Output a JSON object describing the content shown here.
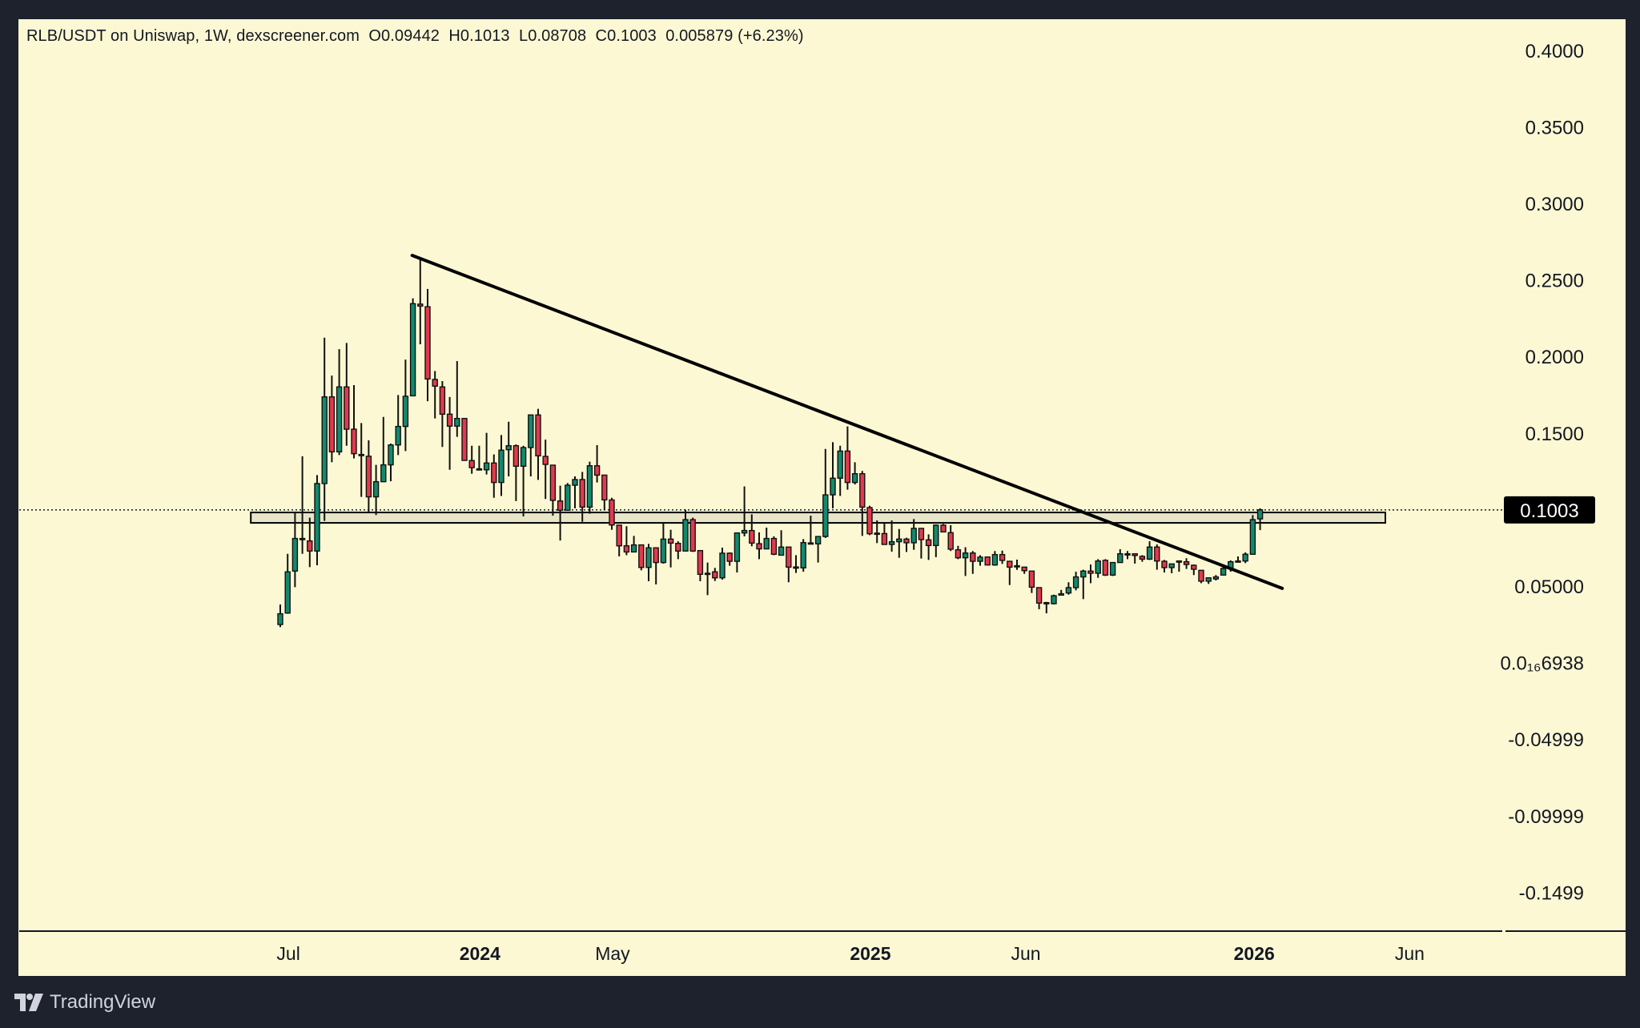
{
  "header": {
    "symbol_line": "RLB/USDT on Uniswap, 1W, dexscreener.com",
    "open": "O0.09442",
    "high": "H0.1013",
    "low": "L0.08708",
    "close": "C0.1003",
    "change": "0.005879 (+6.23%)"
  },
  "branding": {
    "logo_text": "TradingView"
  },
  "colors": {
    "background": "#fcf8d3",
    "frame": "#1e222d",
    "up": "#12896f",
    "down": "#e2394f",
    "zone": "#e9e5c9",
    "line": "#000000"
  },
  "chart_data": {
    "type": "candlestick",
    "title": "RLB/USDT on Uniswap, 1W, dexscreener.com",
    "interval": "1W",
    "ylim": [
      -0.17,
      0.42
    ],
    "y_ticks": [
      {
        "value": 0.4,
        "label": "0.4000"
      },
      {
        "value": 0.35,
        "label": "0.3500"
      },
      {
        "value": 0.3,
        "label": "0.3000"
      },
      {
        "value": 0.25,
        "label": "0.2500"
      },
      {
        "value": 0.2,
        "label": "0.2000"
      },
      {
        "value": 0.15,
        "label": "0.1500"
      },
      {
        "value": 0.05,
        "label": "0.05000"
      },
      {
        "value": 0.0,
        "label": "0.0₁₆6938"
      },
      {
        "value": -0.05,
        "label": "-0.04999"
      },
      {
        "value": -0.1,
        "label": "-0.09999"
      },
      {
        "value": -0.15,
        "label": "-0.1499"
      }
    ],
    "x_ticks": [
      {
        "week_index": 1.1,
        "label": "Jul",
        "bold": false
      },
      {
        "week_index": 27.1,
        "label": "2024",
        "bold": true
      },
      {
        "week_index": 45.1,
        "label": "May",
        "bold": false
      },
      {
        "week_index": 80.1,
        "label": "2025",
        "bold": true
      },
      {
        "week_index": 101.2,
        "label": "Jun",
        "bold": false
      },
      {
        "week_index": 132.2,
        "label": "2026",
        "bold": true
      },
      {
        "week_index": 153.3,
        "label": "Jun",
        "bold": false
      }
    ],
    "last_price": {
      "value": 0.1003,
      "label": "0.1003"
    },
    "trendline": {
      "start": {
        "week_index": 17.9,
        "price": 0.2665
      },
      "end": {
        "week_index": 136,
        "price": 0.049
      }
    },
    "support_zone": {
      "start_index": -4,
      "end_index": 150,
      "low": 0.0918,
      "high": 0.0986
    },
    "ohlc_fields": [
      "open",
      "high",
      "low",
      "close"
    ],
    "candles": [
      [
        0.0254,
        0.0385,
        0.0237,
        0.0324
      ],
      [
        0.0329,
        0.0716,
        0.0324,
        0.0598
      ],
      [
        0.0603,
        0.0986,
        0.0498,
        0.0816
      ],
      [
        0.0816,
        0.1353,
        0.0716,
        0.0814
      ],
      [
        0.08,
        0.0952,
        0.0629,
        0.0734
      ],
      [
        0.0734,
        0.123,
        0.0641,
        0.1175
      ],
      [
        0.1175,
        0.2128,
        0.0931,
        0.1741
      ],
      [
        0.1741,
        0.188,
        0.1314,
        0.1382
      ],
      [
        0.1382,
        0.2053,
        0.1361,
        0.1806
      ],
      [
        0.1806,
        0.2093,
        0.1422,
        0.153
      ],
      [
        0.153,
        0.1818,
        0.1339,
        0.137
      ],
      [
        0.1365,
        0.157,
        0.1088,
        0.136
      ],
      [
        0.1353,
        0.1457,
        0.0986,
        0.1088
      ],
      [
        0.1088,
        0.1297,
        0.0969,
        0.1187
      ],
      [
        0.1187,
        0.161,
        0.1187,
        0.1297
      ],
      [
        0.1297,
        0.1436,
        0.119,
        0.1427
      ],
      [
        0.1427,
        0.1753,
        0.1361,
        0.1548
      ],
      [
        0.1548,
        0.1985,
        0.1387,
        0.1745
      ],
      [
        0.1748,
        0.2385,
        0.1748,
        0.235
      ],
      [
        0.2347,
        0.2643,
        0.2085,
        0.2334
      ],
      [
        0.233,
        0.2446,
        0.1713,
        0.1858
      ],
      [
        0.1855,
        0.191,
        0.16,
        0.1811
      ],
      [
        0.1806,
        0.1844,
        0.1414,
        0.1628
      ],
      [
        0.1628,
        0.174,
        0.1265,
        0.155
      ],
      [
        0.155,
        0.1975,
        0.148,
        0.16
      ],
      [
        0.16,
        0.16,
        0.1326,
        0.1326
      ],
      [
        0.1325,
        0.1422,
        0.1239,
        0.1279
      ],
      [
        0.1271,
        0.1422,
        0.1265,
        0.127
      ],
      [
        0.1265,
        0.1506,
        0.1234,
        0.1309
      ],
      [
        0.1309,
        0.1365,
        0.1082,
        0.1182
      ],
      [
        0.1182,
        0.1492,
        0.1094,
        0.1393
      ],
      [
        0.1396,
        0.1579,
        0.1222,
        0.1422
      ],
      [
        0.1422,
        0.143,
        0.106,
        0.1288
      ],
      [
        0.1288,
        0.1422,
        0.096,
        0.141
      ],
      [
        0.141,
        0.1623,
        0.1222,
        0.1623
      ],
      [
        0.1623,
        0.1663,
        0.1199,
        0.1356
      ],
      [
        0.1352,
        0.1462,
        0.1074,
        0.13
      ],
      [
        0.1295,
        0.1295,
        0.0965,
        0.1065
      ],
      [
        0.1061,
        0.1161,
        0.0803,
        0.1
      ],
      [
        0.1,
        0.1178,
        0.1,
        0.1164
      ],
      [
        0.1164,
        0.1222,
        0.1013,
        0.1201
      ],
      [
        0.1201,
        0.1251,
        0.0925,
        0.1021
      ],
      [
        0.1021,
        0.1318,
        0.0978,
        0.1291
      ],
      [
        0.1291,
        0.1426,
        0.1182,
        0.123
      ],
      [
        0.123,
        0.123,
        0.1,
        0.1068
      ],
      [
        0.1068,
        0.1082,
        0.0873,
        0.0904
      ],
      [
        0.0903,
        0.0903,
        0.0699,
        0.0768
      ],
      [
        0.0768,
        0.0896,
        0.0707,
        0.0728
      ],
      [
        0.0728,
        0.0833,
        0.0728,
        0.0774
      ],
      [
        0.0774,
        0.0774,
        0.0608,
        0.0627
      ],
      [
        0.0627,
        0.0781,
        0.0537,
        0.0755
      ],
      [
        0.0755,
        0.0755,
        0.0516,
        0.0659
      ],
      [
        0.0659,
        0.0917,
        0.0652,
        0.0812
      ],
      [
        0.0812,
        0.0873,
        0.0627,
        0.0786
      ],
      [
        0.0784,
        0.0798,
        0.0681,
        0.0734
      ],
      [
        0.0734,
        0.1004,
        0.0734,
        0.0939
      ],
      [
        0.0939,
        0.0952,
        0.0728,
        0.0734
      ],
      [
        0.0737,
        0.0737,
        0.0537,
        0.0582
      ],
      [
        0.0589,
        0.0659,
        0.0446,
        0.0587
      ],
      [
        0.0598,
        0.0624,
        0.0538,
        0.0559
      ],
      [
        0.0559,
        0.0756,
        0.0547,
        0.072
      ],
      [
        0.072,
        0.0725,
        0.0638,
        0.0667
      ],
      [
        0.0667,
        0.0856,
        0.0594,
        0.0852
      ],
      [
        0.0852,
        0.1156,
        0.083,
        0.0868
      ],
      [
        0.0868,
        0.0974,
        0.0765,
        0.0786
      ],
      [
        0.0782,
        0.0856,
        0.0681,
        0.0748
      ],
      [
        0.0748,
        0.0887,
        0.0748,
        0.0816
      ],
      [
        0.0816,
        0.083,
        0.0707,
        0.0713
      ],
      [
        0.0707,
        0.087,
        0.0707,
        0.076
      ],
      [
        0.076,
        0.076,
        0.053,
        0.0629
      ],
      [
        0.063,
        0.0707,
        0.0591,
        0.0629
      ],
      [
        0.0624,
        0.0812,
        0.0599,
        0.0789
      ],
      [
        0.0786,
        0.0965,
        0.0777,
        0.0787
      ],
      [
        0.0781,
        0.0829,
        0.0659,
        0.0829
      ],
      [
        0.0829,
        0.1401,
        0.082,
        0.1101
      ],
      [
        0.1101,
        0.1445,
        0.1013,
        0.121
      ],
      [
        0.121,
        0.1422,
        0.1094,
        0.1387
      ],
      [
        0.1387,
        0.1548,
        0.1135,
        0.1182
      ],
      [
        0.1182,
        0.1314,
        0.1169,
        0.1239
      ],
      [
        0.1239,
        0.1257,
        0.0833,
        0.1021
      ],
      [
        0.1018,
        0.103,
        0.0838,
        0.0847
      ],
      [
        0.0851,
        0.0934,
        0.0786,
        0.085
      ],
      [
        0.0848,
        0.0917,
        0.0777,
        0.0777
      ],
      [
        0.0777,
        0.0934,
        0.073,
        0.0795
      ],
      [
        0.0795,
        0.0878,
        0.069,
        0.0812
      ],
      [
        0.0812,
        0.0821,
        0.0728,
        0.0788
      ],
      [
        0.0788,
        0.0943,
        0.0742,
        0.0882
      ],
      [
        0.0882,
        0.0882,
        0.0685,
        0.0809
      ],
      [
        0.0807,
        0.0843,
        0.0676,
        0.077
      ],
      [
        0.077,
        0.0908,
        0.0694,
        0.0903
      ],
      [
        0.0903,
        0.0911,
        0.0859,
        0.0859
      ],
      [
        0.0854,
        0.0903,
        0.0734,
        0.0746
      ],
      [
        0.0742,
        0.0768,
        0.0681,
        0.069
      ],
      [
        0.069,
        0.0759,
        0.0571,
        0.0721
      ],
      [
        0.0721,
        0.0734,
        0.0585,
        0.0667
      ],
      [
        0.0667,
        0.0707,
        0.0638,
        0.0694
      ],
      [
        0.0695,
        0.0695,
        0.0643,
        0.0643
      ],
      [
        0.0643,
        0.0734,
        0.0638,
        0.0711
      ],
      [
        0.0711,
        0.0737,
        0.065,
        0.0673
      ],
      [
        0.0667,
        0.0667,
        0.0512,
        0.0629
      ],
      [
        0.0638,
        0.0678,
        0.0611,
        0.0637
      ],
      [
        0.0629,
        0.0629,
        0.0585,
        0.0606
      ],
      [
        0.0603,
        0.0603,
        0.046,
        0.0498
      ],
      [
        0.0495,
        0.0495,
        0.0354,
        0.0394
      ],
      [
        0.0396,
        0.0402,
        0.0327,
        0.0397
      ],
      [
        0.039,
        0.0449,
        0.0385,
        0.0442
      ],
      [
        0.0446,
        0.048,
        0.0446,
        0.0455
      ],
      [
        0.046,
        0.053,
        0.0449,
        0.0495
      ],
      [
        0.0495,
        0.0599,
        0.0477,
        0.0565
      ],
      [
        0.0565,
        0.0612,
        0.042,
        0.0603
      ],
      [
        0.0603,
        0.0646,
        0.0524,
        0.0589
      ],
      [
        0.0589,
        0.0681,
        0.0559,
        0.0669
      ],
      [
        0.0673,
        0.0681,
        0.0571,
        0.0577
      ],
      [
        0.0577,
        0.0659,
        0.0571,
        0.0659
      ],
      [
        0.0659,
        0.0746,
        0.0659,
        0.0716
      ],
      [
        0.0715,
        0.0734,
        0.0681,
        0.0716
      ],
      [
        0.0716,
        0.0716,
        0.0652,
        0.0705
      ],
      [
        0.0699,
        0.0707,
        0.0664,
        0.0681
      ],
      [
        0.0681,
        0.0798,
        0.0676,
        0.076
      ],
      [
        0.076,
        0.0777,
        0.0612,
        0.0669
      ],
      [
        0.0667,
        0.0676,
        0.0594,
        0.0626
      ],
      [
        0.0626,
        0.065,
        0.0589,
        0.065
      ],
      [
        0.0662,
        0.0673,
        0.0599,
        0.0669
      ],
      [
        0.0664,
        0.0687,
        0.0617,
        0.0646
      ],
      [
        0.0641,
        0.0646,
        0.0577,
        0.0615
      ],
      [
        0.0608,
        0.0608,
        0.0524,
        0.0537
      ],
      [
        0.0537,
        0.0562,
        0.0519,
        0.0559
      ],
      [
        0.0552,
        0.0577,
        0.0542,
        0.0565
      ],
      [
        0.0577,
        0.0646,
        0.0577,
        0.062
      ],
      [
        0.062,
        0.0673,
        0.0599,
        0.0664
      ],
      [
        0.0668,
        0.0699,
        0.0664,
        0.0669
      ],
      [
        0.0669,
        0.0725,
        0.0655,
        0.0713
      ],
      [
        0.0713,
        0.0969,
        0.0713,
        0.0939
      ],
      [
        0.09442,
        0.1013,
        0.08708,
        0.1003
      ]
    ]
  }
}
